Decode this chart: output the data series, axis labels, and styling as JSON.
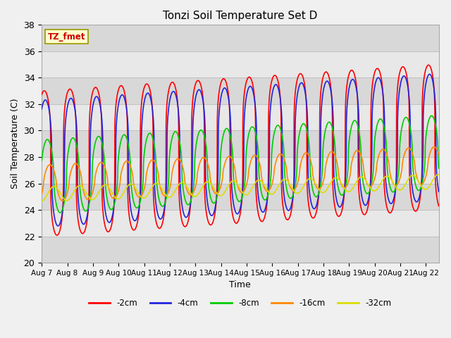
{
  "title": "Tonzi Soil Temperature Set D",
  "xlabel": "Time",
  "ylabel": "Soil Temperature (C)",
  "ylim": [
    20,
    38
  ],
  "xlim_days": [
    0,
    15.5
  ],
  "annotation": "TZ_fmet",
  "bg_color": "#e8e8e8",
  "legend_labels": [
    "-2cm",
    "-4cm",
    "-8cm",
    "-16cm",
    "-32cm"
  ],
  "legend_colors": [
    "#ff0000",
    "#2222dd",
    "#00cc00",
    "#ff8800",
    "#dddd00"
  ],
  "xtick_labels": [
    "Aug 7",
    "Aug 8",
    "Aug 9",
    "Aug 10",
    "Aug 11",
    "Aug 12",
    "Aug 13",
    "Aug 14",
    "Aug 15",
    "Aug 16",
    "Aug 17",
    "Aug 18",
    "Aug 19",
    "Aug 20",
    "Aug 21",
    "Aug 22"
  ],
  "series": {
    "depth_2cm": {
      "base_mean": 27.5,
      "amplitude": 5.5,
      "trend": 0.13,
      "phase": 0.0,
      "sharpness": 4
    },
    "depth_4cm": {
      "base_mean": 27.5,
      "amplitude": 4.8,
      "trend": 0.13,
      "phase": 0.04,
      "sharpness": 3
    },
    "depth_8cm": {
      "base_mean": 26.5,
      "amplitude": 2.8,
      "trend": 0.12,
      "phase": 0.12,
      "sharpness": 2
    },
    "depth_16cm": {
      "base_mean": 26.0,
      "amplitude": 1.4,
      "trend": 0.09,
      "phase": 0.22,
      "sharpness": 1.5
    },
    "depth_32cm": {
      "base_mean": 25.2,
      "amplitude": 0.55,
      "trend": 0.06,
      "phase": 0.38,
      "sharpness": 1
    }
  }
}
